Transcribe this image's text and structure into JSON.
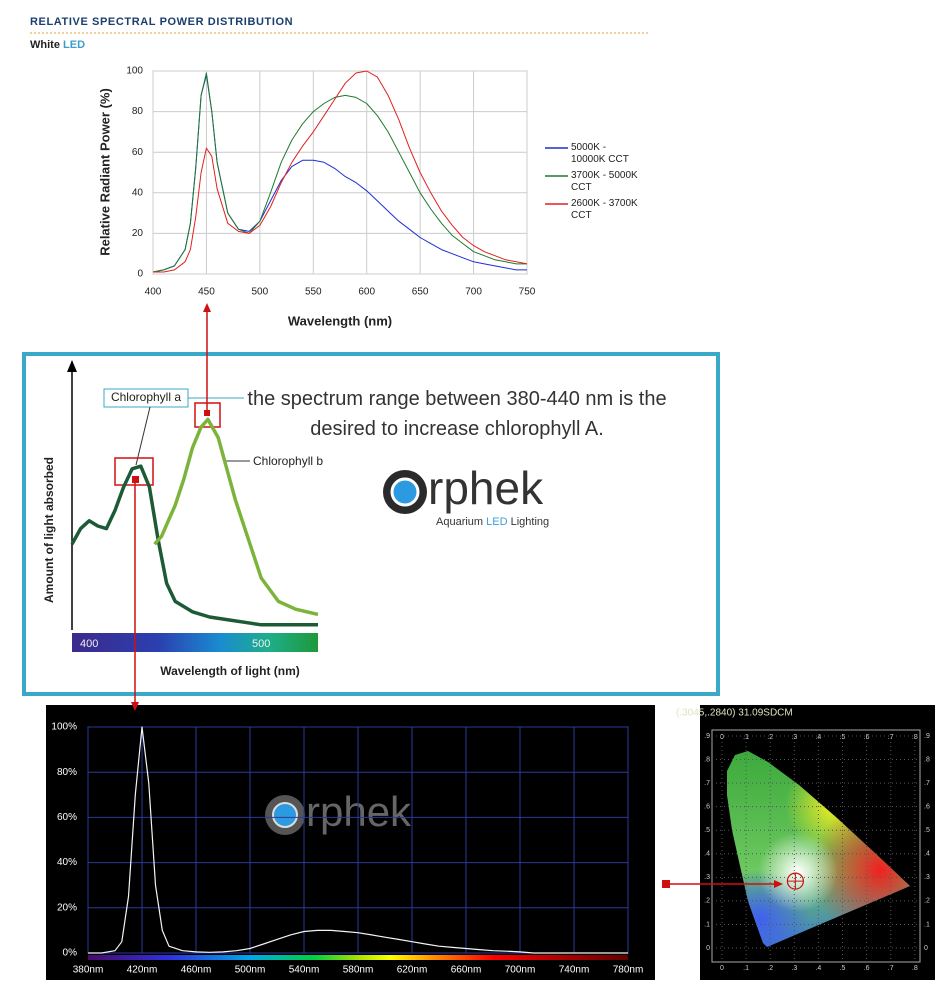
{
  "chart_data": [
    {
      "type": "line",
      "title": "RELATIVE SPECTRAL POWER DISTRIBUTION",
      "subtitle": "White",
      "subtitle_accent": "LED",
      "x_label": "Wavelength (nm)",
      "y_label": "Relative Radiant Power (%)",
      "x": [
        400,
        410,
        420,
        430,
        435,
        440,
        445,
        450,
        455,
        460,
        470,
        480,
        490,
        500,
        510,
        520,
        530,
        540,
        550,
        560,
        570,
        580,
        590,
        600,
        610,
        620,
        630,
        640,
        650,
        660,
        670,
        680,
        690,
        700,
        710,
        720,
        730,
        740,
        750
      ],
      "xlim": [
        400,
        750
      ],
      "xticks": [
        400,
        450,
        500,
        550,
        600,
        650,
        700,
        750
      ],
      "ylim": [
        0,
        100
      ],
      "yticks": [
        0,
        20,
        40,
        60,
        80,
        100
      ],
      "grid": true,
      "series": [
        {
          "name": "5000K - 10000K CCT",
          "color": "#1f2fd0",
          "values": [
            1,
            2,
            4,
            12,
            25,
            52,
            88,
            98,
            80,
            55,
            30,
            22,
            21,
            26,
            36,
            46,
            53,
            56,
            56,
            55,
            52,
            48,
            45,
            41,
            36,
            31,
            26,
            22,
            18,
            15,
            12,
            10,
            8,
            6,
            5,
            4,
            3,
            2,
            2
          ]
        },
        {
          "name": "3700K - 5000K CCT",
          "color": "#1e7a2e",
          "values": [
            1,
            2,
            4,
            12,
            25,
            52,
            88,
            99,
            80,
            55,
            30,
            22,
            20,
            26,
            40,
            55,
            66,
            74,
            80,
            84,
            87,
            88,
            87,
            84,
            78,
            70,
            60,
            50,
            40,
            32,
            25,
            19,
            15,
            11,
            9,
            7,
            6,
            5,
            5
          ]
        },
        {
          "name": "2600K - 3700K CCT",
          "color": "#e02020",
          "values": [
            1,
            1,
            2,
            6,
            12,
            28,
            50,
            62,
            58,
            42,
            25,
            21,
            20,
            24,
            33,
            45,
            55,
            63,
            70,
            78,
            86,
            94,
            99,
            100,
            97,
            88,
            76,
            62,
            50,
            40,
            31,
            24,
            18,
            14,
            11,
            9,
            7,
            6,
            5
          ]
        }
      ]
    },
    {
      "type": "line",
      "x_label": "Wavelength of light (nm)",
      "y_label": "Amount of light absorbed",
      "xlim": [
        390,
        533
      ],
      "xticks": [
        400,
        500
      ],
      "ylim": [
        0,
        100
      ],
      "series": [
        {
          "name": "Chlorophyll a",
          "color": "#1d5a36",
          "x": [
            390,
            395,
            400,
            405,
            410,
            415,
            420,
            425,
            430,
            435,
            440,
            445,
            450,
            460,
            470,
            480,
            490,
            500,
            510,
            520,
            533
          ],
          "values": [
            33,
            39,
            42,
            40,
            39,
            46,
            55,
            62,
            63,
            55,
            35,
            18,
            11,
            7,
            5,
            4,
            3,
            2,
            2,
            2,
            2
          ]
        },
        {
          "name": "Chlorophyll b",
          "color": "#7cb33b",
          "x": [
            438,
            442,
            446,
            450,
            455,
            460,
            465,
            469,
            475,
            480,
            485,
            490,
            495,
            500,
            510,
            520,
            533
          ],
          "values": [
            33,
            36,
            42,
            48,
            58,
            70,
            78,
            81,
            74,
            62,
            50,
            40,
            30,
            20,
            11,
            8,
            6
          ]
        }
      ]
    },
    {
      "type": "line",
      "color": "#f4f4f4",
      "grid": true,
      "x": [
        380,
        390,
        400,
        405,
        410,
        415,
        420,
        425,
        430,
        435,
        440,
        450,
        460,
        470,
        480,
        490,
        500,
        510,
        520,
        530,
        540,
        550,
        560,
        570,
        580,
        590,
        600,
        610,
        620,
        630,
        640,
        650,
        660,
        670,
        680,
        690,
        700,
        710,
        720,
        730,
        740,
        750,
        760,
        770,
        780
      ],
      "values": [
        0,
        0,
        1,
        5,
        25,
        70,
        100,
        75,
        30,
        10,
        3,
        1,
        0.5,
        0.3,
        0.5,
        1,
        2,
        4,
        6,
        8,
        9.5,
        10,
        10,
        9.5,
        9,
        8,
        7,
        6,
        5,
        4,
        3,
        2.5,
        2,
        1.5,
        1,
        0.8,
        0.5,
        0,
        0,
        0,
        0,
        0,
        0,
        0,
        0
      ],
      "xlim": [
        380,
        780
      ],
      "xticks": [
        {
          "value": 380,
          "label": "380nm"
        },
        {
          "value": 420,
          "label": "420nm"
        },
        {
          "value": 460,
          "label": "460nm"
        },
        {
          "value": 500,
          "label": "500nm"
        },
        {
          "value": 540,
          "label": "540nm"
        },
        {
          "value": 580,
          "label": "580nm"
        },
        {
          "value": 620,
          "label": "620nm"
        },
        {
          "value": 660,
          "label": "660nm"
        },
        {
          "value": 700,
          "label": "700nm"
        },
        {
          "value": 740,
          "label": "740nm"
        },
        {
          "value": 780,
          "label": "780nm"
        }
      ],
      "ylim": [
        0,
        100
      ],
      "yticks": [
        {
          "value": 0,
          "label": "0%"
        },
        {
          "value": 20,
          "label": "20%"
        },
        {
          "value": 40,
          "label": "40%"
        },
        {
          "value": 60,
          "label": "60%"
        },
        {
          "value": 80,
          "label": "80%"
        },
        {
          "value": 100,
          "label": "100%"
        }
      ]
    },
    {
      "type": "scatter",
      "title": "(.3045,.2840) 31.09SDCM",
      "color": "#cc1010",
      "x": [
        0.3045
      ],
      "values": [
        0.284
      ],
      "xlim": [
        0,
        0.8
      ],
      "xticks": [
        0,
        {
          "value": 0.1,
          "label": ".1"
        },
        {
          "value": 0.2,
          "label": ".2"
        },
        {
          "value": 0.3,
          "label": ".3"
        },
        {
          "value": 0.4,
          "label": ".4"
        },
        {
          "value": 0.5,
          "label": ".5"
        },
        {
          "value": 0.6,
          "label": ".6"
        },
        {
          "value": 0.7,
          "label": ".7"
        },
        {
          "value": 0.8,
          "label": ".8"
        }
      ],
      "ylim": [
        0,
        0.9
      ],
      "yticks": [
        0,
        {
          "value": 0.1,
          "label": ".1"
        },
        {
          "value": 0.2,
          "label": ".2"
        },
        {
          "value": 0.3,
          "label": ".3"
        },
        {
          "value": 0.4,
          "label": ".4"
        },
        {
          "value": 0.5,
          "label": ".5"
        },
        {
          "value": 0.6,
          "label": ".6"
        },
        {
          "value": 0.7,
          "label": ".7"
        },
        {
          "value": 0.8,
          "label": ".8"
        },
        {
          "value": 0.9,
          "label": ".9"
        }
      ]
    }
  ],
  "annotation": "the spectrum range between 380-440 nm is the desired to increase chlorophyll A.",
  "logo": {
    "wordmark": "rphek",
    "tagline": "Aquarium",
    "tagline_accent": "LED",
    "tagline_end": "Lighting"
  }
}
